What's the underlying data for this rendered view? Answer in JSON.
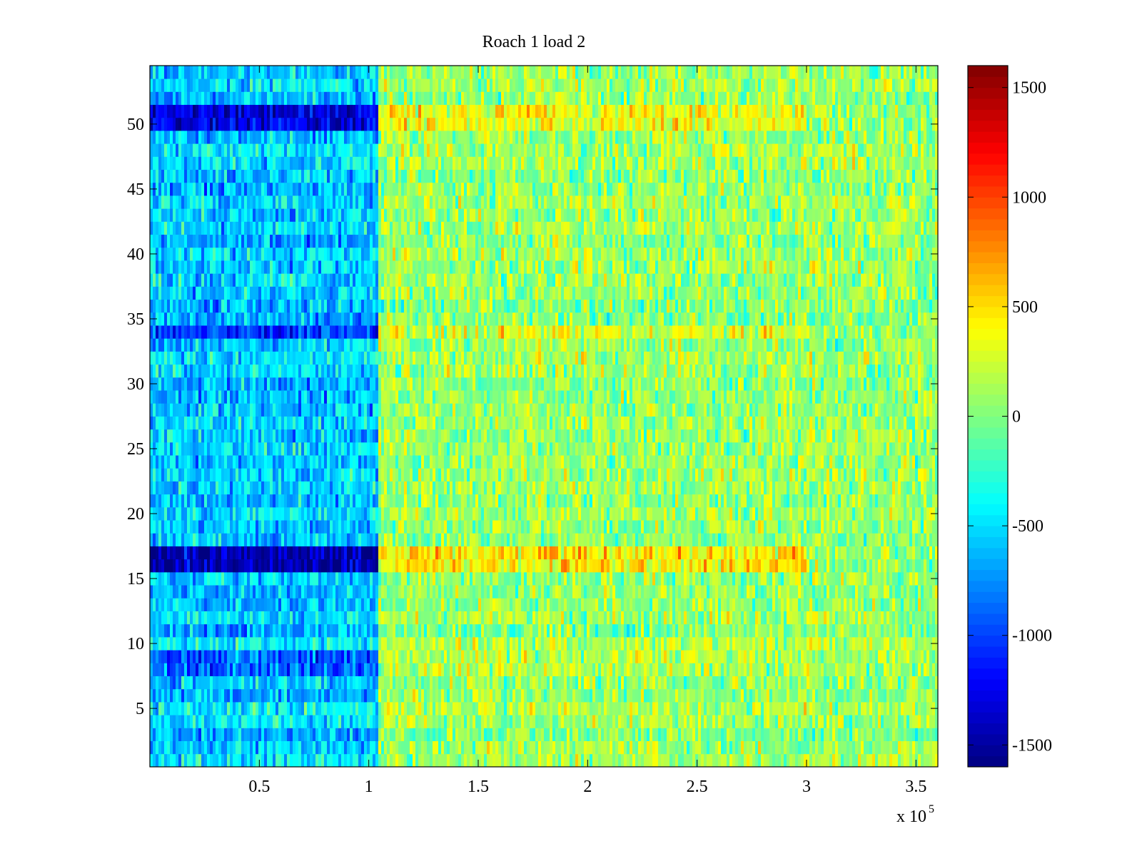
{
  "chart_data": {
    "type": "heatmap",
    "title": "Roach 1 load 2",
    "xlabel": "",
    "ylabel": "",
    "x_multiplier_label": "x 10",
    "x_multiplier_exponent": "5",
    "xlim": [
      0,
      3.6
    ],
    "x_unit_scale": 100000,
    "ylim": [
      0.5,
      54.5
    ],
    "rows": 54,
    "x_ticks": [
      0.5,
      1,
      1.5,
      2,
      2.5,
      3,
      3.5
    ],
    "x_tick_labels": [
      "0.5",
      "1",
      "1.5",
      "2",
      "2.5",
      "3",
      "3.5"
    ],
    "y_ticks": [
      5,
      10,
      15,
      20,
      25,
      30,
      35,
      40,
      45,
      50
    ],
    "y_tick_labels": [
      "5",
      "10",
      "15",
      "20",
      "25",
      "30",
      "35",
      "40",
      "45",
      "50"
    ],
    "colormap": "jet",
    "clim": [
      -1600,
      1600
    ],
    "colorbar_ticks": [
      1500,
      1000,
      500,
      0,
      -500,
      -1000,
      -1500
    ],
    "colorbar_tick_labels": [
      "1500",
      "1000",
      "500",
      "0",
      "-500",
      "-1000",
      "-1500"
    ],
    "value_regions": [
      {
        "x_range": [
          0,
          1.05
        ],
        "baseline": -550,
        "note": "early period mostly cyan"
      },
      {
        "x_range": [
          1.05,
          3.6
        ],
        "baseline": 80,
        "note": "later period mostly green-yellow"
      }
    ],
    "highlighted_rows": [
      {
        "rows": [
          16,
          17
        ],
        "early_value": -1450,
        "late_value": 450
      },
      {
        "rows": [
          50,
          51
        ],
        "early_value": -1300,
        "late_value": 350
      },
      {
        "rows": [
          34
        ],
        "early_value": -1000,
        "late_value": 300
      },
      {
        "rows": [
          8,
          9
        ],
        "early_value": -900,
        "late_value": 150
      }
    ]
  }
}
